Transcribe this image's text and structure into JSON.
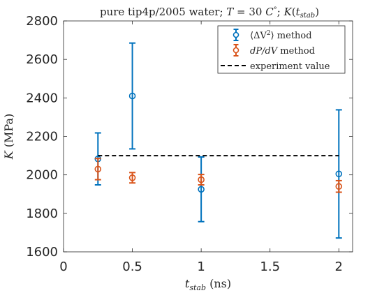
{
  "chart_data": {
    "type": "scatter",
    "title": "pure tip4p/2005 water; T = 30 C°; K(t_stab)",
    "xlabel": "t_stab (ns)",
    "ylabel": "K (MPa)",
    "xlim": [
      0,
      2.1
    ],
    "ylim": [
      1600,
      2800
    ],
    "xticks": [
      0,
      0.5,
      1,
      1.5,
      2
    ],
    "xtick_labels": [
      "0",
      "0.5",
      "1",
      "1.5",
      "2"
    ],
    "yticks": [
      1600,
      1800,
      2000,
      2200,
      2400,
      2600,
      2800
    ],
    "ytick_labels": [
      "1600",
      "1800",
      "2000",
      "2200",
      "2400",
      "2600",
      "2800"
    ],
    "grid": false,
    "legend_position": "top-right",
    "series": [
      {
        "name": "⟨ΔV²⟩ method",
        "color": "#0072BD",
        "marker": "circle",
        "error_bars": true,
        "points": [
          {
            "x": 0.25,
            "y": 2083,
            "low": 1948,
            "high": 2218
          },
          {
            "x": 0.5,
            "y": 2410,
            "low": 2135,
            "high": 2685
          },
          {
            "x": 1,
            "y": 1925,
            "low": 1757,
            "high": 2093
          },
          {
            "x": 2,
            "y": 2005,
            "low": 1672,
            "high": 2338
          }
        ]
      },
      {
        "name": "dP/dV method",
        "color": "#D95319",
        "marker": "circle",
        "error_bars": true,
        "points": [
          {
            "x": 0.25,
            "y": 2030,
            "low": 1975,
            "high": 2085
          },
          {
            "x": 0.5,
            "y": 1985,
            "low": 1958,
            "high": 2012
          },
          {
            "x": 1,
            "y": 1975,
            "low": 1948,
            "high": 2002
          },
          {
            "x": 2,
            "y": 1940,
            "low": 1910,
            "high": 1970
          }
        ]
      },
      {
        "name": "experiment value",
        "color": "#000000",
        "style": "dashed-line",
        "x": [
          0.25,
          2
        ],
        "y": [
          2100,
          2100
        ]
      }
    ]
  }
}
